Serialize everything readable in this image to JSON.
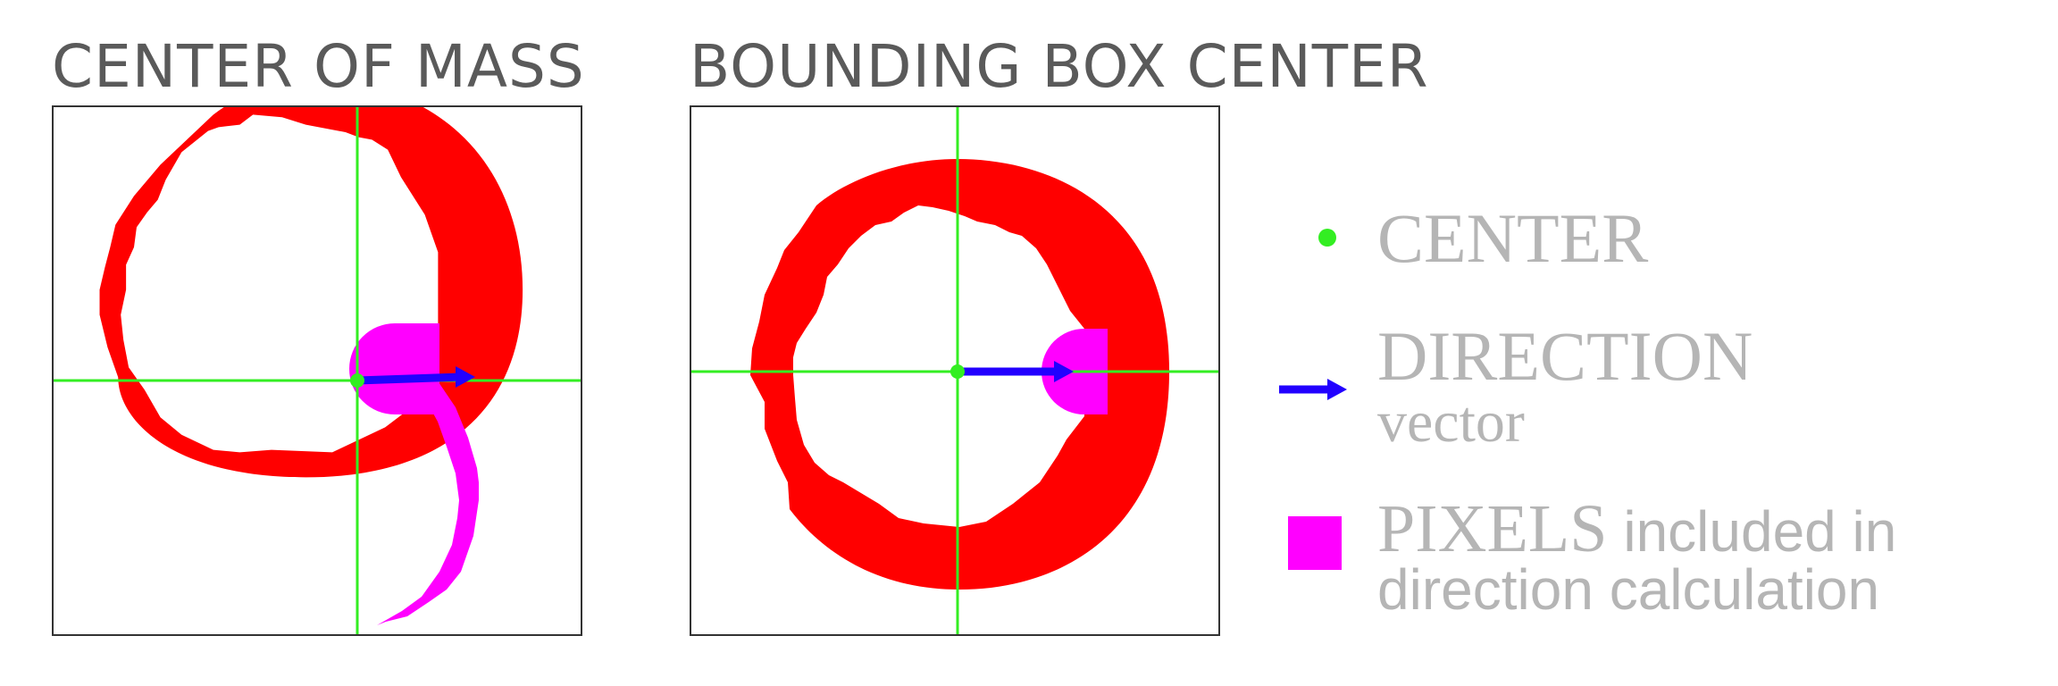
{
  "panels": [
    {
      "title": "CENTER OF MASS",
      "method": "center-of-mass"
    },
    {
      "title": "BOUNDING BOX CENTER",
      "method": "bounding-box-center"
    }
  ],
  "legend": {
    "center": {
      "label": "CENTER"
    },
    "direction": {
      "label": "DIRECTION",
      "sublabel": "vector"
    },
    "pixels": {
      "label_strong": "PIXELS",
      "label_rest": "included in",
      "label_line2": "direction calculation"
    }
  },
  "colors": {
    "ring": "#ff0000",
    "included_pixels": "#ff00ff",
    "center_point": "#33ee22",
    "crosshair": "#33ee22",
    "direction_vector": "#2200ff",
    "legend_text": "#b5b5b5",
    "title_text": "#5a5a5a"
  }
}
